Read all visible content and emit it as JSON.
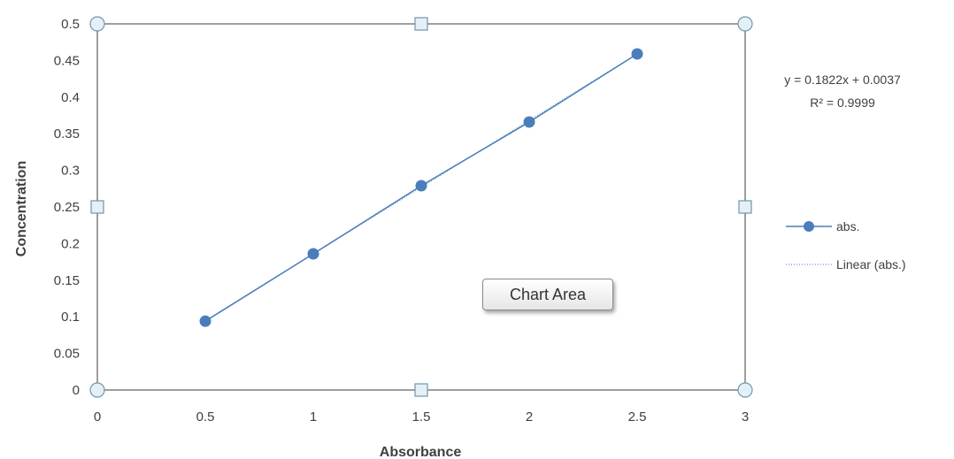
{
  "chart_data": {
    "type": "scatter",
    "xlabel": "Absorbance",
    "ylabel": "Concentration",
    "xlim": [
      0,
      3
    ],
    "ylim": [
      0,
      0.5
    ],
    "x_ticks": [
      "0",
      "0.5",
      "1",
      "1.5",
      "2",
      "2.5",
      "3"
    ],
    "y_ticks": [
      "0",
      "0.05",
      "0.1",
      "0.15",
      "0.2",
      "0.25",
      "0.3",
      "0.35",
      "0.4",
      "0.45",
      "0.5"
    ],
    "grid": false,
    "series": [
      {
        "name": "abs.",
        "x": [
          0.5,
          1,
          1.5,
          2,
          2.5
        ],
        "y": [
          0.094,
          0.186,
          0.279,
          0.366,
          0.459
        ],
        "color": "#4a7ebb",
        "style": "line-with-markers"
      }
    ],
    "trendline": {
      "name": "Linear (abs.)",
      "equation": "y = 0.1822x + 0.0037",
      "r_squared": "R² = 0.9999",
      "slope": 0.1822,
      "intercept": 0.0037,
      "style": "dotted"
    },
    "legend": {
      "placement": "right",
      "entries": [
        "abs.",
        "Linear (abs.)"
      ]
    }
  },
  "tooltip": {
    "label": "Chart Area"
  }
}
